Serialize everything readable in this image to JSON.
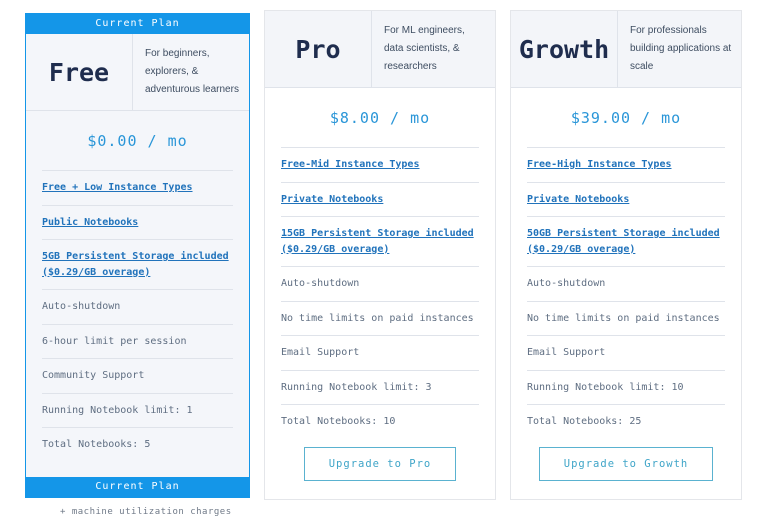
{
  "footnote": "+ machine utilization charges",
  "colors": {
    "banner_blue": "#1496e8",
    "price_blue": "#2a96d8",
    "link_blue": "#2173bb",
    "title_navy": "#1f2d4e",
    "body_gray": "#5f6e82",
    "cta_teal": "#3fa5c8"
  },
  "plans": [
    {
      "id": "free",
      "name": "Free",
      "description": "For beginners, explorers, & adventurous learners",
      "price": "$0.00 / mo",
      "current": true,
      "banner_label": "Current Plan",
      "features": [
        {
          "text": "Free + Low Instance Types",
          "link": true
        },
        {
          "text": "Public Notebooks",
          "link": true
        },
        {
          "text": "5GB Persistent Storage included ($0.29/GB overage)",
          "link": true
        },
        {
          "text": "Auto-shutdown",
          "link": false
        },
        {
          "text": "6-hour limit per session",
          "link": false
        },
        {
          "text": "Community Support",
          "link": false
        },
        {
          "text": "Running Notebook limit: 1",
          "link": false
        },
        {
          "text": "Total Notebooks: 5",
          "link": false
        }
      ],
      "cta": null
    },
    {
      "id": "pro",
      "name": "Pro",
      "description": "For ML engineers, data scientists, & researchers",
      "price": "$8.00 / mo",
      "current": false,
      "banner_label": null,
      "features": [
        {
          "text": "Free-Mid Instance Types",
          "link": true
        },
        {
          "text": "Private Notebooks",
          "link": true
        },
        {
          "text": "15GB Persistent Storage included ($0.29/GB overage)",
          "link": true
        },
        {
          "text": "Auto-shutdown",
          "link": false
        },
        {
          "text": "No time limits on paid instances",
          "link": false
        },
        {
          "text": "Email Support",
          "link": false
        },
        {
          "text": "Running Notebook limit: 3",
          "link": false
        },
        {
          "text": "Total Notebooks: 10",
          "link": false
        }
      ],
      "cta": "Upgrade to Pro"
    },
    {
      "id": "growth",
      "name": "Growth",
      "description": "For professionals building applications at scale",
      "price": "$39.00 / mo",
      "current": false,
      "banner_label": null,
      "features": [
        {
          "text": "Free-High Instance Types",
          "link": true
        },
        {
          "text": "Private Notebooks",
          "link": true
        },
        {
          "text": "50GB Persistent Storage included ($0.29/GB overage)",
          "link": true
        },
        {
          "text": "Auto-shutdown",
          "link": false
        },
        {
          "text": "No time limits on paid instances",
          "link": false
        },
        {
          "text": "Email Support",
          "link": false
        },
        {
          "text": "Running Notebook limit: 10",
          "link": false
        },
        {
          "text": "Total Notebooks: 25",
          "link": false
        }
      ],
      "cta": "Upgrade to Growth"
    }
  ]
}
